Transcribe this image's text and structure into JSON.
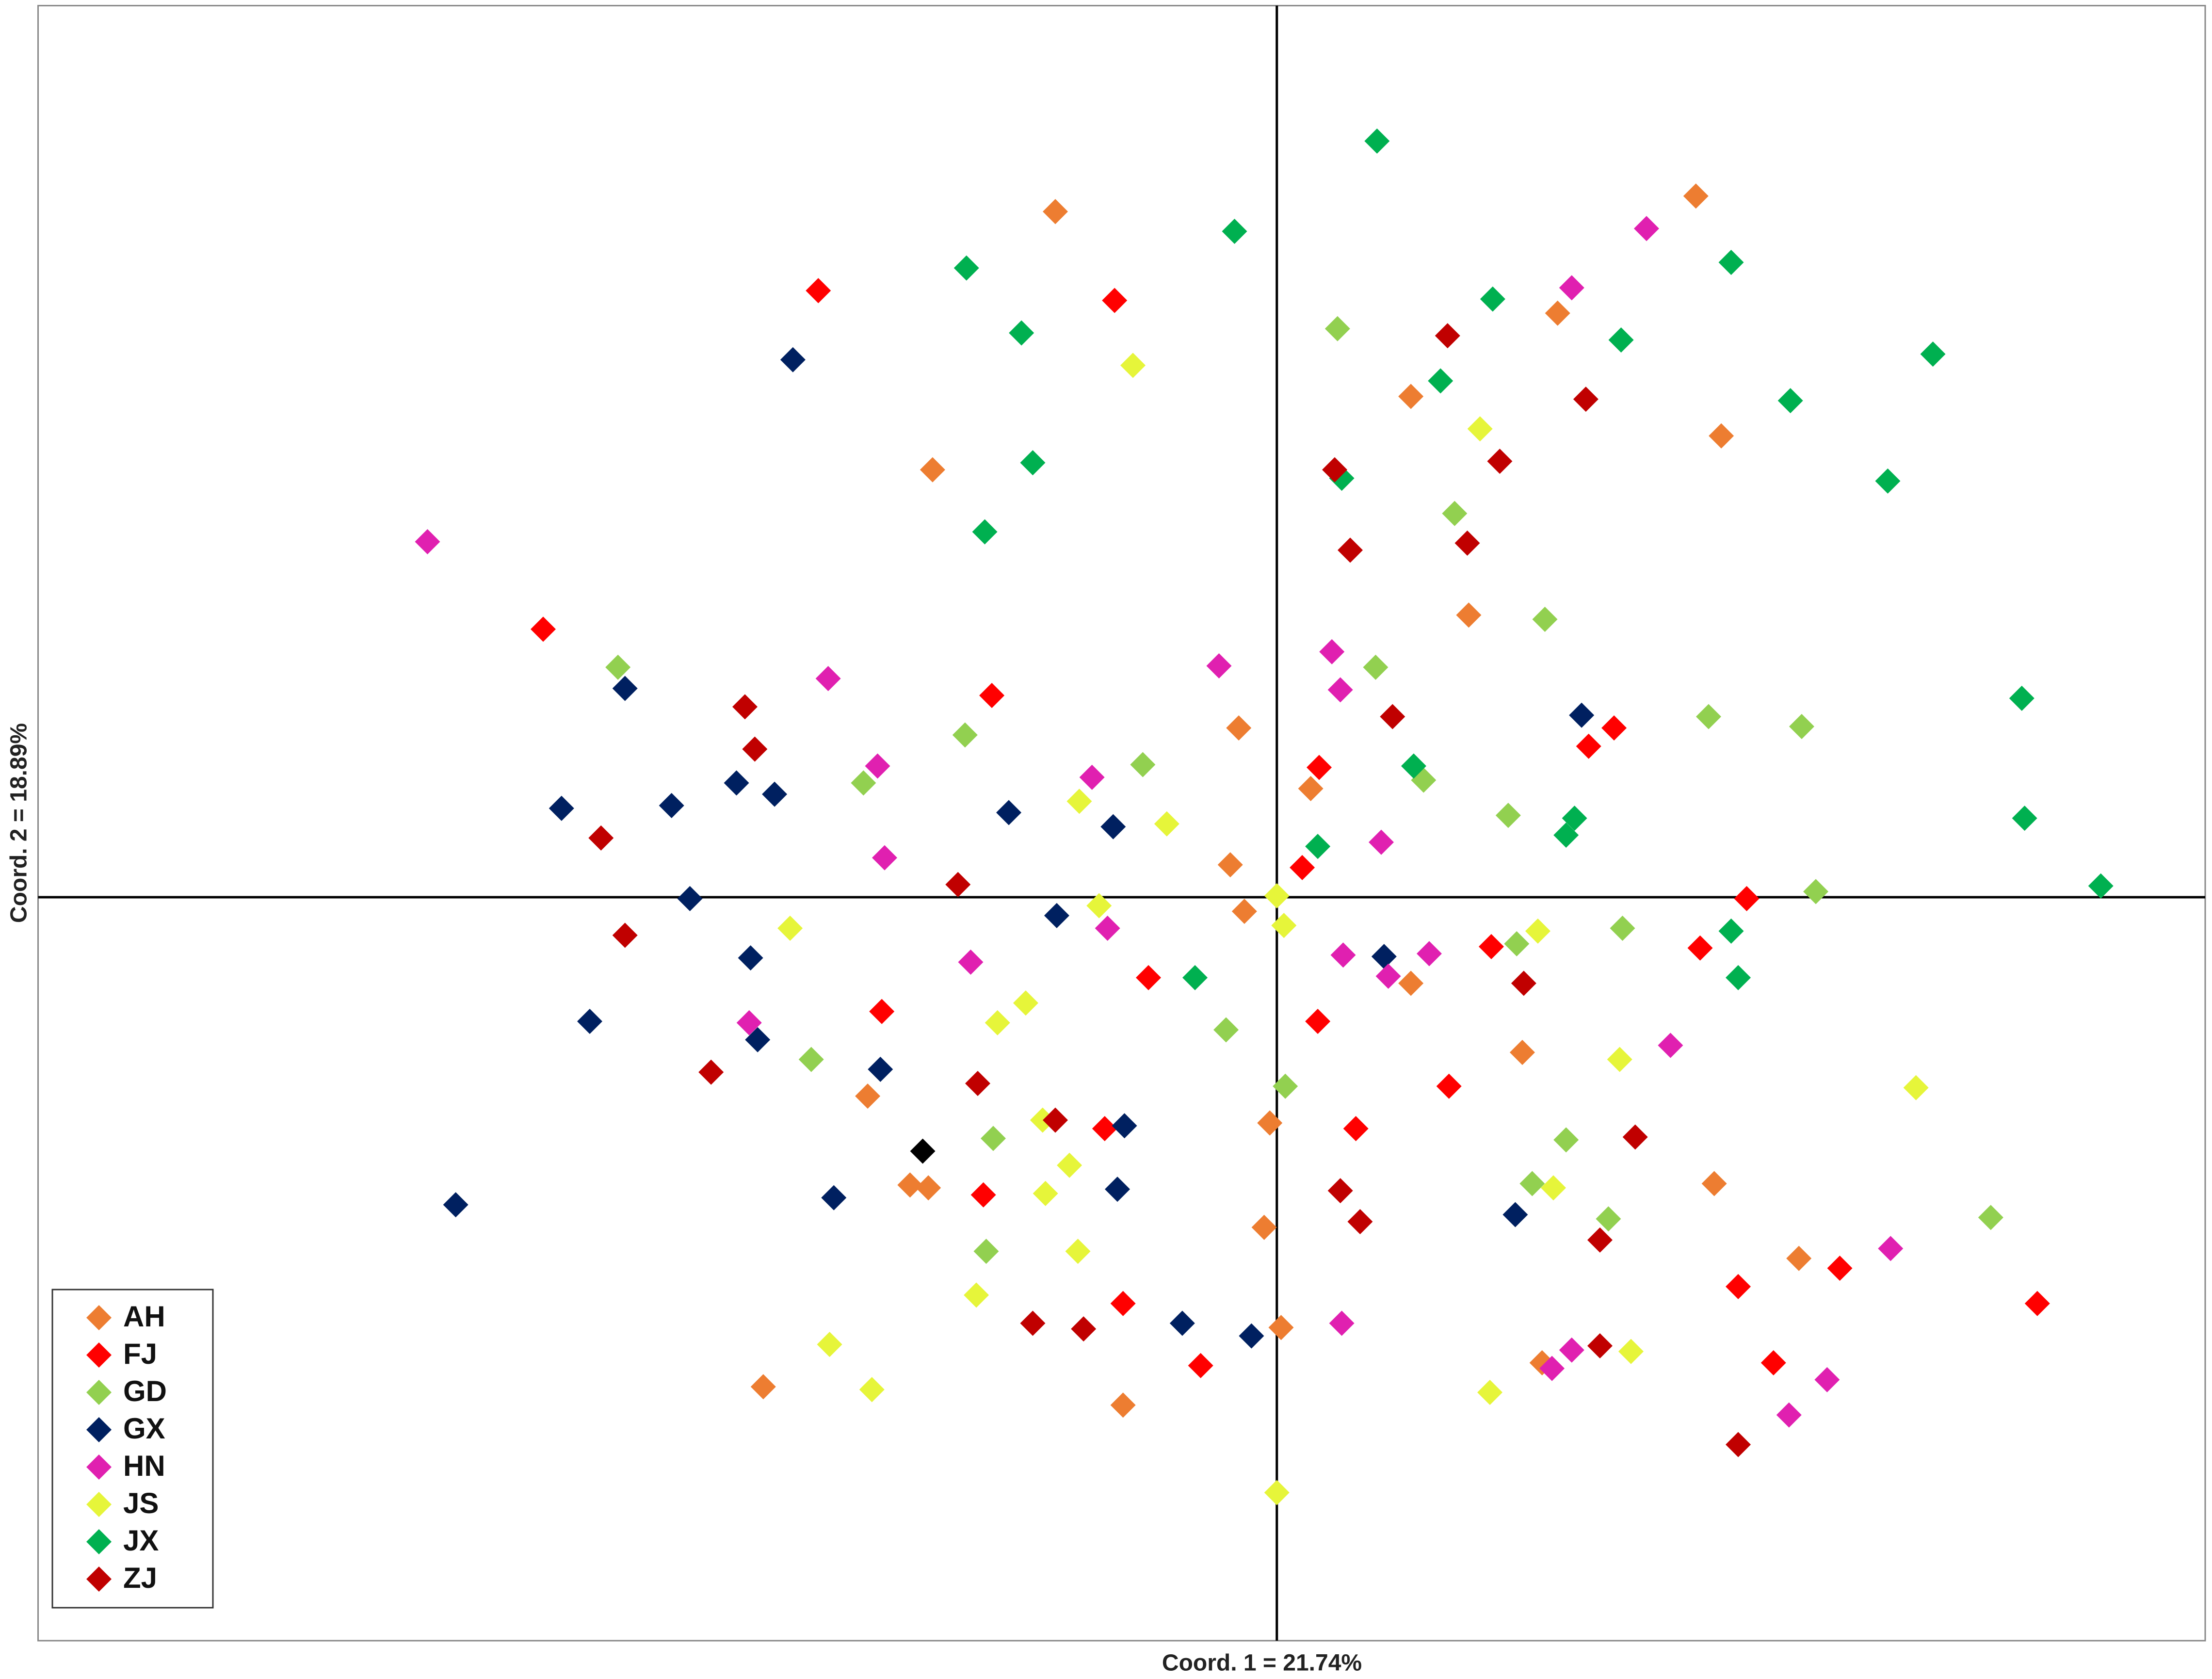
{
  "chart_data": {
    "type": "scatter",
    "x_label": "Coord. 1 = 21.74%",
    "y_label": "Coord. 2 = 18.89%",
    "xlim": [
      -878,
      658
    ],
    "ylim": [
      -527,
      632
    ],
    "legend": "lower left",
    "series": [
      {
        "name": "AH",
        "color": "#ED7D31",
        "x": [
          -157,
          297,
          199,
          95,
          315,
          -244,
          136,
          -27,
          24,
          -33,
          -23,
          95,
          174,
          -290,
          -5,
          -260,
          -247,
          310,
          -9,
          370,
          3,
          188,
          -364,
          -109
        ],
        "y": [
          486,
          497,
          414,
          355,
          327,
          303,
          200,
          120,
          77,
          23,
          -10,
          -61,
          -110,
          -141,
          -160,
          -204,
          -206,
          -203,
          -234,
          -256,
          -305,
          -330,
          -347,
          -360
        ]
      },
      {
        "name": "FJ",
        "color": "#FF0000",
        "x": [
          -325,
          -115,
          -520,
          -202,
          239,
          221,
          30,
          18,
          333,
          152,
          300,
          -91,
          -280,
          29,
          122,
          -122,
          56,
          -208,
          327,
          399,
          539,
          -109,
          -54,
          352
        ],
        "y": [
          430,
          423,
          190,
          143,
          120,
          107,
          92,
          21,
          -1,
          -35,
          -36,
          -57,
          -81,
          -88,
          -134,
          -164,
          -164,
          -211,
          -276,
          -263,
          -288,
          -288,
          -332,
          -330
        ]
      },
      {
        "name": "GD",
        "color": "#92D050",
        "x": [
          43,
          126,
          190,
          -467,
          70,
          -221,
          -95,
          -293,
          104,
          306,
          372,
          164,
          382,
          245,
          170,
          -36,
          -330,
          6,
          -201,
          205,
          181,
          235,
          506,
          -206
        ],
        "y": [
          403,
          272,
          197,
          163,
          163,
          115,
          94,
          81,
          83,
          128,
          121,
          58,
          4,
          -22,
          -33,
          -94,
          -115,
          -134,
          -171,
          -172,
          -203,
          -228,
          -227,
          -251
        ]
      },
      {
        "name": "GX",
        "color": "#002060",
        "x": [
          -343,
          -462,
          216,
          -507,
          -429,
          -383,
          -356,
          -190,
          -116,
          -416,
          -156,
          -373,
          76,
          -487,
          -368,
          -281,
          -108,
          -113,
          -314,
          -582,
          169,
          -67,
          -18
        ],
        "y": [
          381,
          148,
          129,
          63,
          65,
          81,
          73,
          60,
          50,
          -1,
          -13,
          -43,
          -42,
          -88,
          -101,
          -122,
          -162,
          -207,
          -213,
          -218,
          -225,
          -302,
          -311
        ]
      },
      {
        "name": "HN",
        "color": "#E020B0",
        "x": [
          -602,
          262,
          209,
          -41,
          39,
          45,
          -318,
          -283,
          -131,
          74,
          -278,
          -120,
          -217,
          47,
          79,
          108,
          -374,
          279,
          435,
          46,
          195,
          209,
          390,
          363
        ],
        "y": [
          252,
          474,
          432,
          164,
          174,
          147,
          155,
          93,
          85,
          39,
          28,
          -22,
          -46,
          -41,
          -56,
          -40,
          -89,
          -105,
          -249,
          -302,
          -334,
          -321,
          -342,
          -367
        ]
      },
      {
        "name": "JS",
        "color": "#E6F53A",
        "x": [
          -102,
          144,
          -140,
          -78,
          -126,
          0,
          5,
          -345,
          185,
          -178,
          -198,
          243,
          453,
          -166,
          -147,
          -164,
          196,
          -141,
          -213,
          -317,
          -287,
          251,
          151,
          0
        ],
        "y": [
          377,
          332,
          68,
          52,
          -6,
          1,
          -20,
          -22,
          -24,
          -75,
          -89,
          -115,
          -135,
          -158,
          -190,
          -210,
          -206,
          -251,
          -282,
          -317,
          -349,
          -322,
          -351,
          -422
        ]
      },
      {
        "name": "JX",
        "color": "#00B050",
        "x": [
          71,
          -30,
          -220,
          322,
          153,
          -181,
          244,
          465,
          116,
          364,
          -173,
          46,
          433,
          -207,
          528,
          97,
          211,
          205,
          29,
          530,
          584,
          322,
          327,
          -58
        ],
        "y": [
          536,
          472,
          446,
          450,
          424,
          400,
          395,
          385,
          366,
          352,
          308,
          297,
          295,
          259,
          141,
          93,
          56,
          44,
          36,
          56,
          8,
          -24,
          -57,
          -57
        ]
      },
      {
        "name": "ZJ",
        "color": "#C00000",
        "x": [
          121,
          219,
          41,
          158,
          135,
          52,
          -377,
          -370,
          82,
          -479,
          -226,
          -462,
          175,
          -401,
          -212,
          -157,
          254,
          45,
          59,
          229,
          -173,
          -137,
          229,
          327
        ],
        "y": [
          398,
          353,
          303,
          309,
          251,
          246,
          135,
          105,
          128,
          42,
          9,
          -27,
          -61,
          -124,
          -132,
          -158,
          -170,
          -208,
          -230,
          -243,
          -302,
          -306,
          -318,
          -388
        ]
      },
      {
        "color": "#000000",
        "x": [
          -251
        ],
        "y": [
          -180
        ]
      }
    ]
  }
}
